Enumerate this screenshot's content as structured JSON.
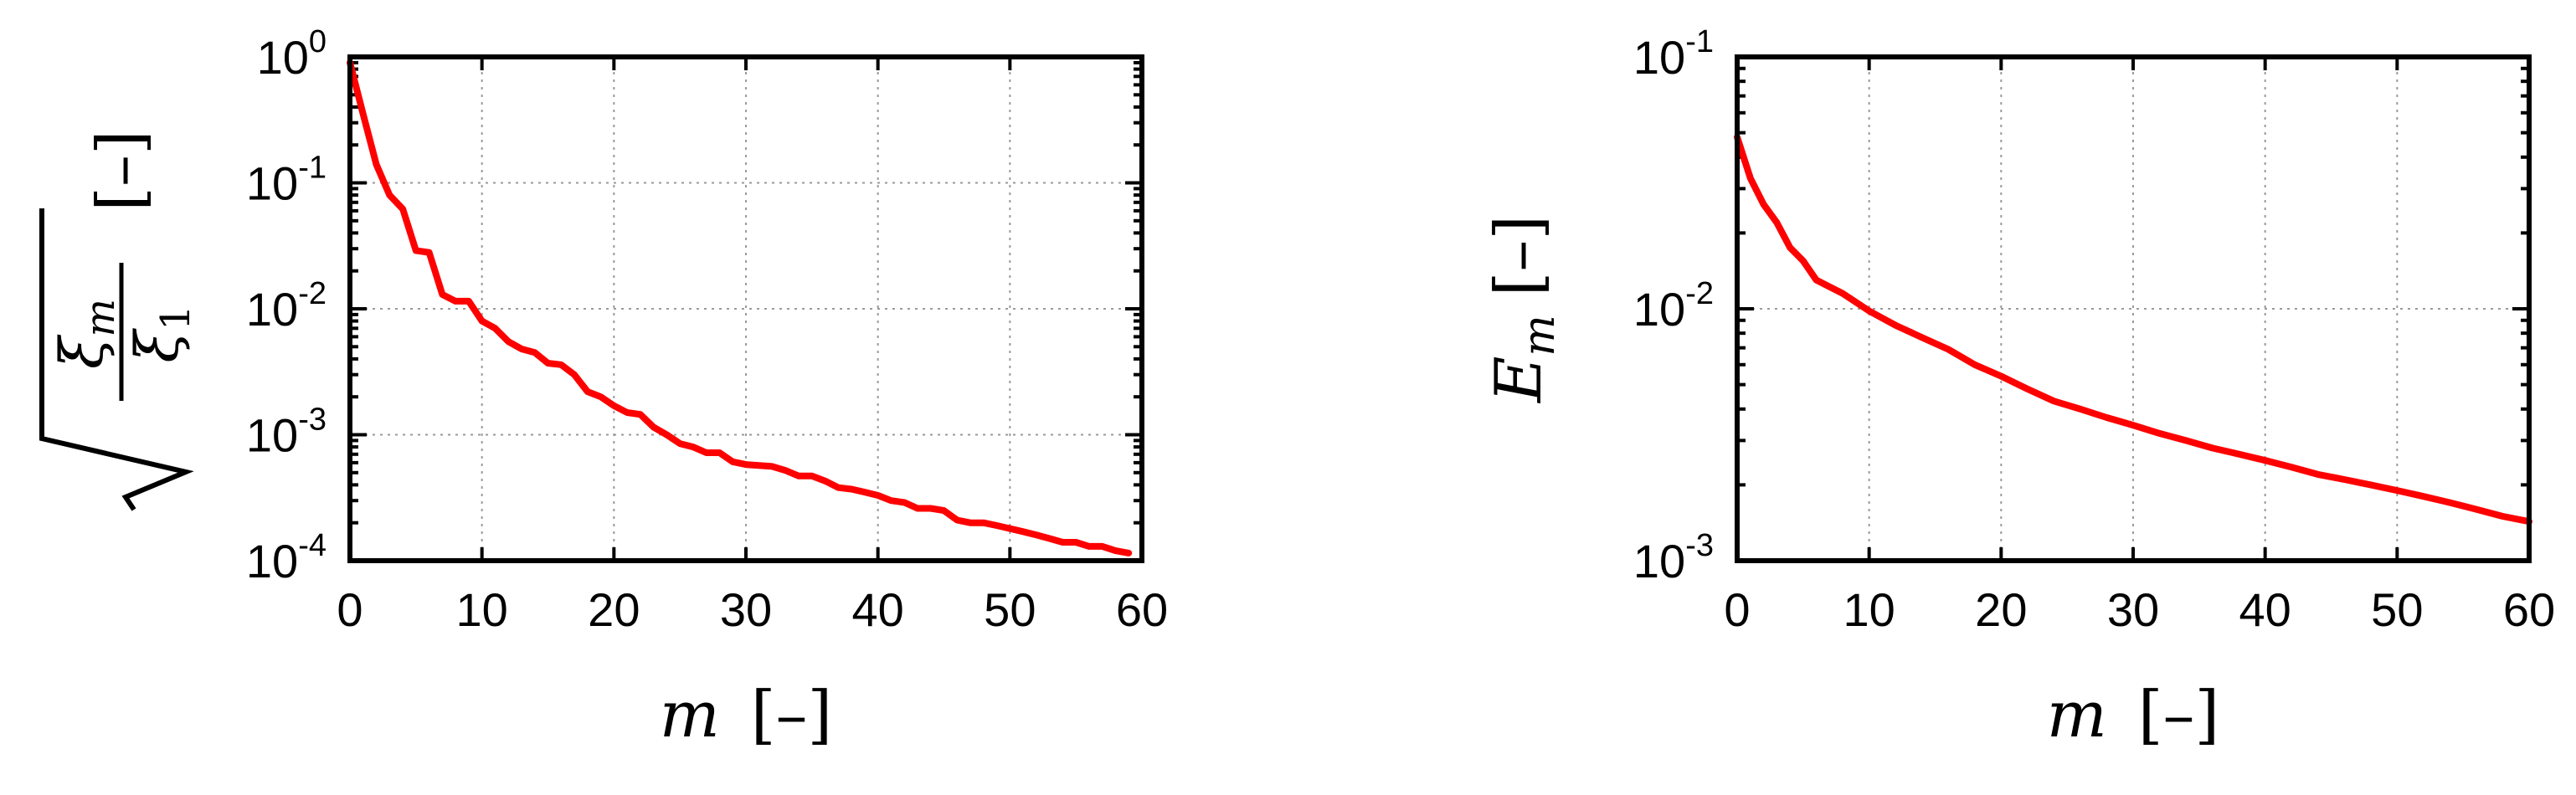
{
  "chart_data": [
    {
      "type": "line",
      "title": "",
      "xlabel": "m [–]",
      "ylabel": "√(ξm/ξ1) [–]",
      "ylabel_parts": {
        "radicand_num": "ξ",
        "radicand_num_sub": "m",
        "radicand_den": "ξ",
        "radicand_den_sub": "1",
        "unit": "[–]"
      },
      "xlabel_parts": {
        "var": "m",
        "unit": "[–]"
      },
      "x_ticks": [
        "0",
        "10",
        "20",
        "30",
        "40",
        "50",
        "60"
      ],
      "y_ticks": [
        {
          "base": "10",
          "exp": "0"
        },
        {
          "base": "10",
          "exp": "-1"
        },
        {
          "base": "10",
          "exp": "-2"
        },
        {
          "base": "10",
          "exp": "-3"
        },
        {
          "base": "10",
          "exp": "-4"
        }
      ],
      "xlim": [
        0,
        60
      ],
      "ylim": [
        0.0001,
        1
      ],
      "yscale": "log",
      "grid": true,
      "series": [
        {
          "color": "#ff0000",
          "x": [
            0,
            1,
            2,
            3,
            4,
            5,
            6,
            7,
            8,
            9,
            10,
            11,
            12,
            13,
            14,
            15,
            16,
            17,
            18,
            19,
            20,
            21,
            22,
            23,
            24,
            25,
            26,
            27,
            28,
            29,
            30,
            31,
            32,
            33,
            34,
            35,
            36,
            37,
            38,
            39,
            40,
            41,
            42,
            43,
            44,
            45,
            46,
            47,
            48,
            49,
            50,
            51,
            52,
            53,
            54,
            55,
            56,
            57,
            58,
            59
          ],
          "y": [
            0.9,
            0.35,
            0.14,
            0.08,
            0.062,
            0.029,
            0.028,
            0.013,
            0.0115,
            0.0115,
            0.008,
            0.007,
            0.0055,
            0.0048,
            0.0045,
            0.0037,
            0.0036,
            0.003,
            0.0022,
            0.002,
            0.0017,
            0.0015,
            0.00145,
            0.00115,
            0.001,
            0.00085,
            0.0008,
            0.00072,
            0.00072,
            0.00061,
            0.00058,
            0.00057,
            0.00056,
            0.00052,
            0.00047,
            0.00047,
            0.00043,
            0.00038,
            0.00037,
            0.00035,
            0.00033,
            0.0003,
            0.00029,
            0.00026,
            0.00026,
            0.00025,
            0.00021,
            0.0002,
            0.0002,
            0.00019,
            0.00018,
            0.00017,
            0.00016,
            0.00015,
            0.00014,
            0.00014,
            0.00013,
            0.00013,
            0.00012,
            0.000115
          ]
        }
      ]
    },
    {
      "type": "line",
      "title": "",
      "xlabel": "m [–]",
      "ylabel": "Em [–]",
      "ylabel_parts": {
        "var": "E",
        "sub": "m",
        "unit": "[–]"
      },
      "xlabel_parts": {
        "var": "m",
        "unit": "[–]"
      },
      "x_ticks": [
        "0",
        "10",
        "20",
        "30",
        "40",
        "50",
        "60"
      ],
      "y_ticks": [
        {
          "base": "10",
          "exp": "-1"
        },
        {
          "base": "10",
          "exp": "-2"
        },
        {
          "base": "10",
          "exp": "-3"
        }
      ],
      "xlim": [
        0,
        60
      ],
      "ylim": [
        0.001,
        0.1
      ],
      "yscale": "log",
      "grid": true,
      "series": [
        {
          "color": "#ff0000",
          "x": [
            0,
            1,
            2,
            3,
            4,
            5,
            6,
            8,
            10,
            12,
            14,
            16,
            18,
            20,
            22,
            24,
            26,
            28,
            30,
            32,
            34,
            36,
            38,
            40,
            42,
            44,
            46,
            48,
            50,
            52,
            54,
            56,
            58,
            60
          ],
          "y": [
            0.048,
            0.033,
            0.026,
            0.022,
            0.0175,
            0.0155,
            0.013,
            0.0115,
            0.0098,
            0.0086,
            0.0077,
            0.0069,
            0.006,
            0.0054,
            0.0048,
            0.0043,
            0.004,
            0.0037,
            0.00345,
            0.0032,
            0.003,
            0.0028,
            0.00265,
            0.0025,
            0.00235,
            0.0022,
            0.0021,
            0.002,
            0.0019,
            0.0018,
            0.0017,
            0.0016,
            0.0015,
            0.00143
          ]
        }
      ]
    }
  ]
}
